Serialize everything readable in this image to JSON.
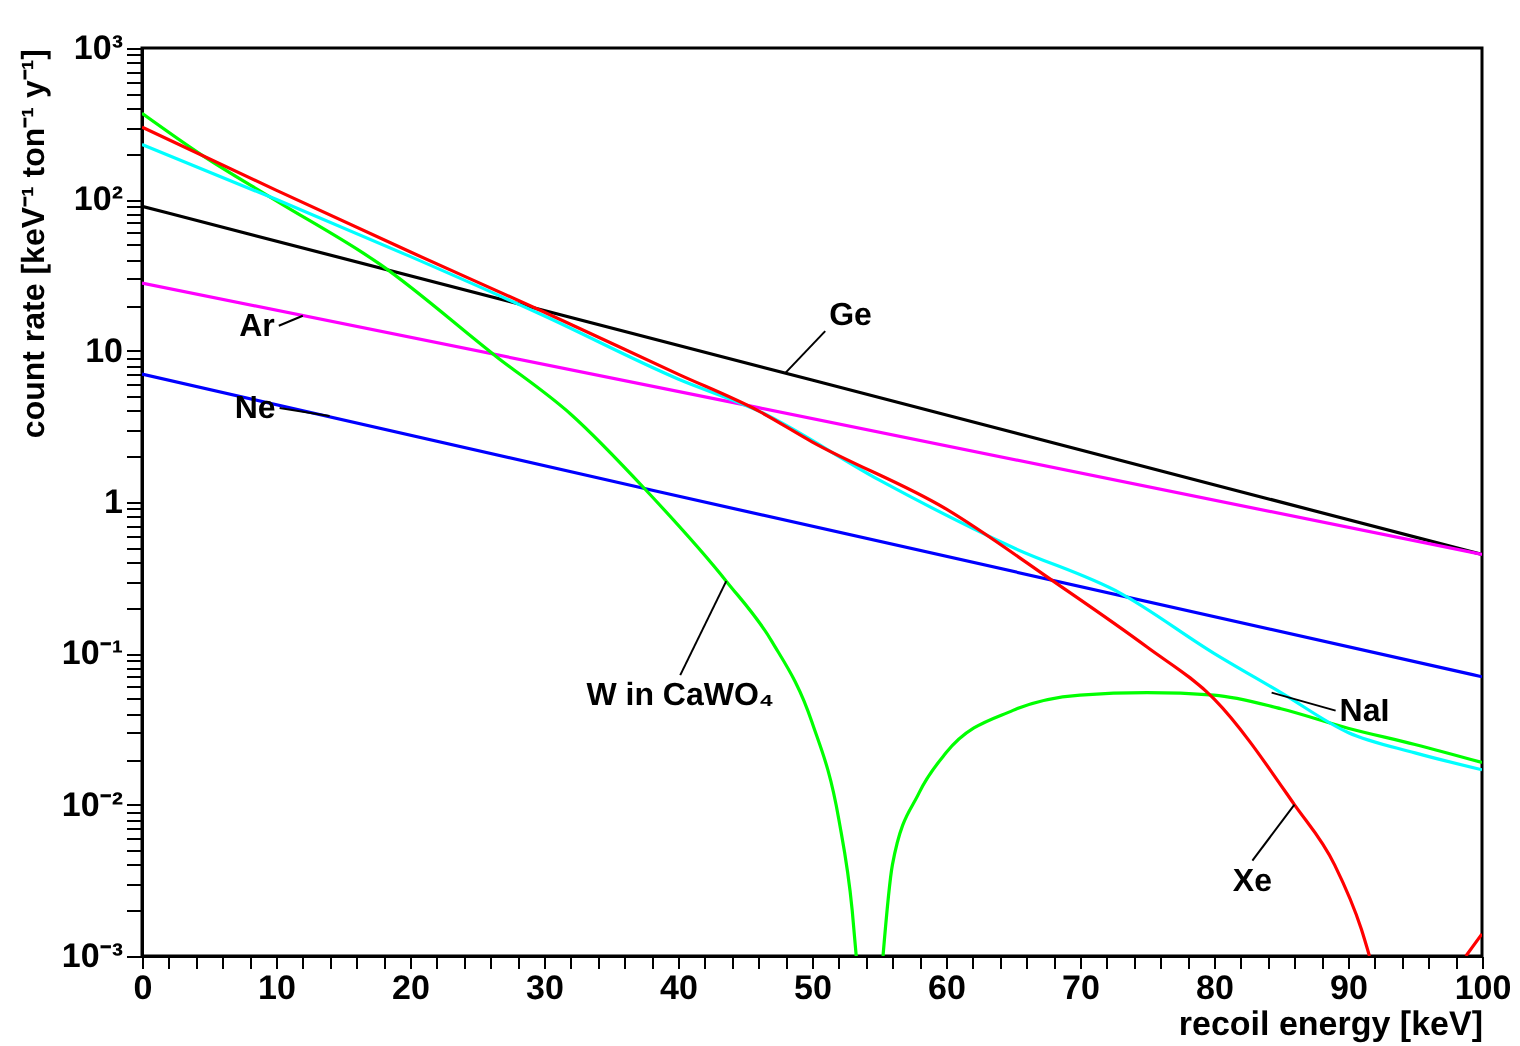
{
  "chart_data": {
    "type": "line",
    "xlabel": "recoil energy [keV]",
    "ylabel": "count rate [keV⁻¹ ton⁻¹ y⁻¹]",
    "log": "y",
    "grid": false,
    "marker": "none",
    "line_style": "solid",
    "xlim": [
      0,
      100
    ],
    "ylim": [
      0.001,
      1000
    ],
    "xticks": [
      0,
      {
        "value": 2,
        "label": null
      },
      {
        "value": 4,
        "label": null
      },
      {
        "value": 6,
        "label": null
      },
      {
        "value": 8,
        "label": null
      },
      10,
      {
        "value": 12,
        "label": null
      },
      {
        "value": 14,
        "label": null
      },
      {
        "value": 16,
        "label": null
      },
      {
        "value": 18,
        "label": null
      },
      20,
      {
        "value": 22,
        "label": null
      },
      {
        "value": 24,
        "label": null
      },
      {
        "value": 26,
        "label": null
      },
      {
        "value": 28,
        "label": null
      },
      30,
      {
        "value": 32,
        "label": null
      },
      {
        "value": 34,
        "label": null
      },
      {
        "value": 36,
        "label": null
      },
      {
        "value": 38,
        "label": null
      },
      40,
      {
        "value": 42,
        "label": null
      },
      {
        "value": 44,
        "label": null
      },
      {
        "value": 46,
        "label": null
      },
      {
        "value": 48,
        "label": null
      },
      50,
      {
        "value": 52,
        "label": null
      },
      {
        "value": 54,
        "label": null
      },
      {
        "value": 56,
        "label": null
      },
      {
        "value": 58,
        "label": null
      },
      60,
      {
        "value": 62,
        "label": null
      },
      {
        "value": 64,
        "label": null
      },
      {
        "value": 66,
        "label": null
      },
      {
        "value": 68,
        "label": null
      },
      70,
      {
        "value": 72,
        "label": null
      },
      {
        "value": 74,
        "label": null
      },
      {
        "value": 76,
        "label": null
      },
      {
        "value": 78,
        "label": null
      },
      80,
      {
        "value": 82,
        "label": null
      },
      {
        "value": 84,
        "label": null
      },
      {
        "value": 86,
        "label": null
      },
      {
        "value": 88,
        "label": null
      },
      90,
      {
        "value": 92,
        "label": null
      },
      {
        "value": 94,
        "label": null
      },
      {
        "value": 96,
        "label": null
      },
      {
        "value": 98,
        "label": null
      },
      100
    ],
    "yticks": [
      {
        "value": 0.001,
        "label": "10⁻³"
      },
      {
        "value": 0.002,
        "label": null
      },
      {
        "value": 0.003,
        "label": null
      },
      {
        "value": 0.004,
        "label": null
      },
      {
        "value": 0.005,
        "label": null
      },
      {
        "value": 0.006,
        "label": null
      },
      {
        "value": 0.007,
        "label": null
      },
      {
        "value": 0.008,
        "label": null
      },
      {
        "value": 0.009,
        "label": null
      },
      {
        "value": 0.01,
        "label": "10⁻²"
      },
      {
        "value": 0.02,
        "label": null
      },
      {
        "value": 0.03,
        "label": null
      },
      {
        "value": 0.04,
        "label": null
      },
      {
        "value": 0.05,
        "label": null
      },
      {
        "value": 0.06,
        "label": null
      },
      {
        "value": 0.07,
        "label": null
      },
      {
        "value": 0.08,
        "label": null
      },
      {
        "value": 0.09,
        "label": null
      },
      {
        "value": 0.1,
        "label": "10⁻¹"
      },
      {
        "value": 0.2,
        "label": null
      },
      {
        "value": 0.3,
        "label": null
      },
      {
        "value": 0.4,
        "label": null
      },
      {
        "value": 0.5,
        "label": null
      },
      {
        "value": 0.6,
        "label": null
      },
      {
        "value": 0.7,
        "label": null
      },
      {
        "value": 0.8,
        "label": null
      },
      {
        "value": 0.9,
        "label": null
      },
      1,
      {
        "value": 2,
        "label": null
      },
      {
        "value": 3,
        "label": null
      },
      {
        "value": 4,
        "label": null
      },
      {
        "value": 5,
        "label": null
      },
      {
        "value": 6,
        "label": null
      },
      {
        "value": 7,
        "label": null
      },
      {
        "value": 8,
        "label": null
      },
      {
        "value": 9,
        "label": null
      },
      10,
      {
        "value": 20,
        "label": null
      },
      {
        "value": 30,
        "label": null
      },
      {
        "value": 40,
        "label": null
      },
      {
        "value": 50,
        "label": null
      },
      {
        "value": 60,
        "label": null
      },
      {
        "value": 70,
        "label": null
      },
      {
        "value": 80,
        "label": null
      },
      {
        "value": 90,
        "label": null
      },
      {
        "value": 100,
        "label": "10²"
      },
      {
        "value": 200,
        "label": null
      },
      {
        "value": 300,
        "label": null
      },
      {
        "value": 400,
        "label": null
      },
      {
        "value": 500,
        "label": null
      },
      {
        "value": 600,
        "label": null
      },
      {
        "value": 700,
        "label": null
      },
      {
        "value": 800,
        "label": null
      },
      {
        "value": 900,
        "label": null
      },
      {
        "value": 1000,
        "label": "10³"
      }
    ],
    "series": [
      {
        "color": "#000000",
        "x": [
          0,
          50,
          100
        ],
        "values": [
          90,
          6.4,
          0.45
        ]
      },
      {
        "color": "#ff00ff",
        "x": [
          0,
          46,
          100
        ],
        "values": [
          28,
          4.2,
          0.45
        ]
      },
      {
        "color": "#0000ff",
        "x": [
          0,
          38,
          100
        ],
        "values": [
          7,
          1.2,
          0.07
        ]
      },
      {
        "color": "#00ff00",
        "x": [
          0,
          4.5,
          10,
          17.8,
          26.4,
          32,
          37.6,
          43.6,
          47,
          50,
          52,
          53,
          53.3,
          54,
          55.3,
          56,
          58,
          60,
          65,
          70,
          75,
          80,
          85,
          90,
          95,
          100
        ],
        "values": [
          370,
          195,
          98,
          37,
          9.2,
          3.8,
          1.2,
          0.3,
          0.12,
          0.035,
          0.008,
          0.002,
          0.001,
          null,
          0.001,
          0.004,
          0.012,
          0.022,
          0.042,
          0.053,
          0.055,
          0.053,
          0.043,
          0.032,
          0.025,
          0.019
        ]
      },
      {
        "color": "#00ffff",
        "x": [
          0,
          10,
          20,
          30,
          40,
          46,
          55,
          65,
          73,
          80,
          85,
          90,
          95,
          100
        ],
        "values": [
          230,
          100,
          42,
          17,
          6.5,
          4,
          1.4,
          0.5,
          0.25,
          0.1,
          0.055,
          0.03,
          0.022,
          0.017
        ]
      },
      {
        "color": "#ff0000",
        "x": [
          0,
          10,
          20,
          30,
          40,
          46,
          50,
          60,
          68,
          75,
          80,
          86,
          89,
          91,
          91.6,
          95,
          98.8,
          100
        ],
        "values": [
          300,
          115,
          45,
          18,
          7,
          4,
          2.5,
          0.9,
          0.3,
          0.11,
          0.05,
          0.01,
          0.004,
          0.0015,
          0.001,
          null,
          0.001,
          0.0014
        ]
      }
    ],
    "annotations": [
      {
        "text": "Ge",
        "x": 48,
        "y": 7.1
      },
      {
        "text": "Ar",
        "x": 12,
        "y": 17
      },
      {
        "text": "Ne",
        "x": 14,
        "y": 3.7
      },
      {
        "text": "W in CaWO₄",
        "x": 43.6,
        "y": 0.3
      },
      {
        "text": "NaI",
        "x": 84.3,
        "y": 0.055
      },
      {
        "text": "Xe",
        "x": 86,
        "y": 0.01
      }
    ]
  }
}
